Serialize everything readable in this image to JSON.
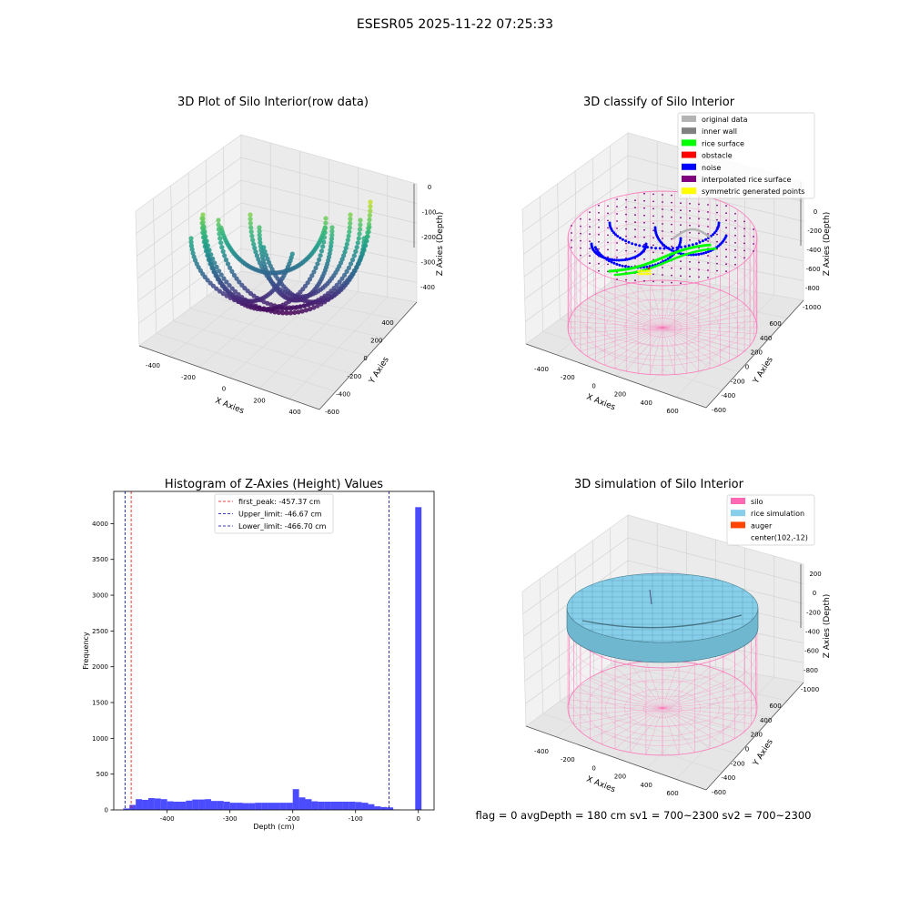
{
  "suptitle": "ESESR05 2025-11-22 07:25:33",
  "footer_text": "flag = 0     avgDepth = 180 cm  sv1 = 700~2300  sv2 = 700~2300",
  "colors": {
    "viridis_low": "#440154",
    "viridis_high": "#fde725",
    "silo": "#ff69b4",
    "rice": "#87ceeb",
    "hist_bar": "#0000ff",
    "original_data": "#b3b3b3",
    "inner_wall": "#808080",
    "rice_surface": "#00ff00",
    "obstacle": "#ff0000",
    "noise": "#0000ff",
    "interpolated": "#800080",
    "symmetric": "#ffff00",
    "auger": "#ff4500"
  },
  "chart_data": [
    {
      "type": "scatter",
      "subtype": "3d",
      "title": "3D Plot of Silo Interior(row data)",
      "xlabel": "X Axies",
      "ylabel": "Y Axies",
      "zlabel": "Z Axies (Depth)",
      "xticks": [
        "-400",
        "-200",
        "0",
        "200",
        "400"
      ],
      "yticks": [
        "400",
        "200",
        "0",
        "-200",
        "-400",
        "-600"
      ],
      "zticks": [
        "0",
        "-100",
        "-200",
        "-300",
        "-400"
      ],
      "xlim": [
        -480,
        480
      ],
      "ylim": [
        -650,
        450
      ],
      "zlim": [
        -470,
        10
      ],
      "colormap": "viridis"
    },
    {
      "type": "scatter",
      "subtype": "3d",
      "title": "3D classify of Silo Interior",
      "xlabel": "X Axies",
      "ylabel": "Y Axies",
      "zlabel": "Z Axies (Depth)",
      "xticks": [
        "-400",
        "-200",
        "0",
        "200",
        "400",
        "600"
      ],
      "yticks": [
        "600",
        "400",
        "200",
        "0",
        "-200",
        "-400",
        "-600"
      ],
      "zticks": [
        "0",
        "-200",
        "-400",
        "-600",
        "-800",
        "-1000"
      ],
      "legend": [
        "original data",
        "inner wall",
        "rice surface",
        "obstacle",
        "noise",
        "interpolated rice surface",
        "symmetric generated points"
      ],
      "legend_loc": "upper right"
    },
    {
      "type": "bar",
      "subtype": "histogram",
      "title": "Histogram of Z-Axies (Height) Values",
      "xlabel": "Depth (cm)",
      "ylabel": "Frequency",
      "xlim": [
        -485,
        25
      ],
      "ylim": [
        0,
        4450
      ],
      "xticks": [
        -400,
        -300,
        -200,
        -100,
        0
      ],
      "yticks": [
        0,
        500,
        1000,
        1500,
        2000,
        2500,
        3000,
        3500,
        4000
      ],
      "bin_width": 10,
      "bins": [
        [
          -470,
          20
        ],
        [
          -460,
          70
        ],
        [
          -450,
          150
        ],
        [
          -440,
          140
        ],
        [
          -430,
          165
        ],
        [
          -420,
          160
        ],
        [
          -410,
          150
        ],
        [
          -400,
          120
        ],
        [
          -390,
          115
        ],
        [
          -380,
          115
        ],
        [
          -370,
          130
        ],
        [
          -360,
          145
        ],
        [
          -350,
          145
        ],
        [
          -340,
          150
        ],
        [
          -330,
          125
        ],
        [
          -320,
          125
        ],
        [
          -310,
          115
        ],
        [
          -300,
          100
        ],
        [
          -290,
          100
        ],
        [
          -280,
          95
        ],
        [
          -270,
          95
        ],
        [
          -260,
          100
        ],
        [
          -250,
          100
        ],
        [
          -240,
          100
        ],
        [
          -230,
          100
        ],
        [
          -220,
          100
        ],
        [
          -210,
          100
        ],
        [
          -200,
          290
        ],
        [
          -190,
          175
        ],
        [
          -180,
          150
        ],
        [
          -170,
          120
        ],
        [
          -160,
          115
        ],
        [
          -150,
          115
        ],
        [
          -140,
          115
        ],
        [
          -130,
          115
        ],
        [
          -120,
          115
        ],
        [
          -110,
          115
        ],
        [
          -100,
          110
        ],
        [
          -90,
          100
        ],
        [
          -80,
          80
        ],
        [
          -70,
          50
        ],
        [
          -60,
          40
        ],
        [
          -50,
          35
        ],
        [
          -40,
          5
        ],
        [
          -30,
          0
        ],
        [
          -20,
          0
        ],
        [
          -10,
          0
        ],
        [
          -5,
          4230
        ]
      ],
      "vlines": [
        {
          "label": "first_peak: -457.37 cm",
          "x": -457.37,
          "color": "#ff0000"
        },
        {
          "label": "Upper_limit: -46.67 cm",
          "x": -46.67,
          "color": "#0000aa"
        },
        {
          "label": "Lower_limit: -466.70 cm",
          "x": -466.7,
          "color": "#0000aa"
        }
      ],
      "legend_loc": "upper center"
    },
    {
      "type": "scatter",
      "subtype": "3d-surface",
      "title": "3D simulation of Silo Interior",
      "xlabel": "X Axies",
      "ylabel": "Y Axies",
      "zlabel": "Z Axies (Depth)",
      "xticks": [
        "-400",
        "-200",
        "0",
        "200",
        "400",
        "600"
      ],
      "yticks": [
        "600",
        "400",
        "200",
        "0",
        "-200",
        "-400",
        "-600"
      ],
      "zticks": [
        "200",
        "0",
        "-200",
        "-400",
        "-600",
        "-800",
        "-1000"
      ],
      "legend": [
        "silo",
        "rice simulation",
        "auger",
        "center(102,-12)"
      ],
      "legend_loc": "upper right"
    }
  ]
}
